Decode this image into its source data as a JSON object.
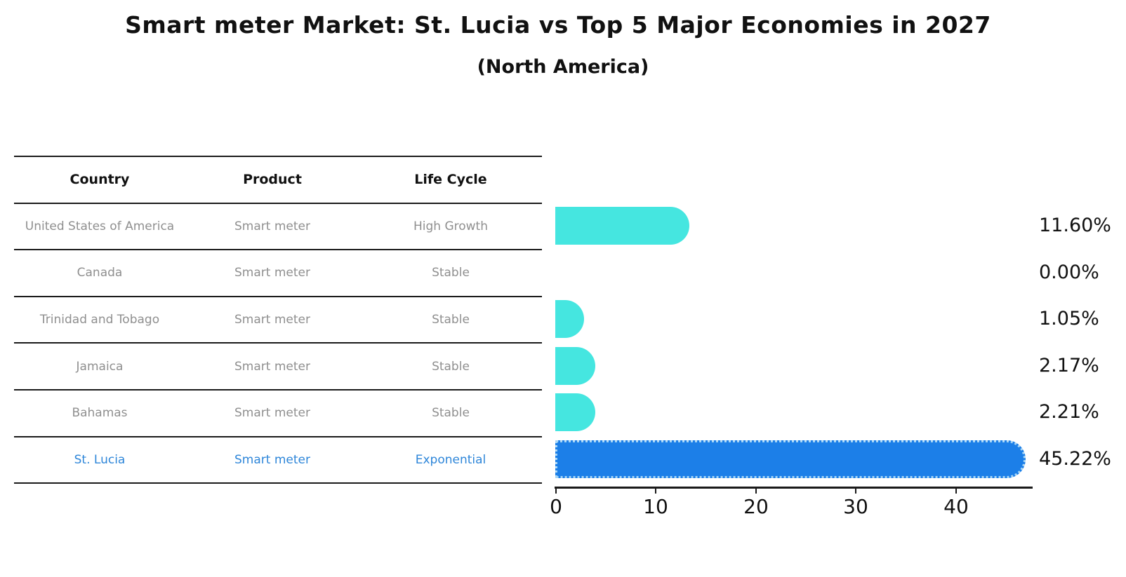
{
  "chart_data": {
    "type": "bar",
    "orientation": "horizontal",
    "title": "Smart meter Market: St. Lucia vs Top 5 Major Economies in 2027",
    "subtitle": "(North America)",
    "categories": [
      "United States of America",
      "Canada",
      "Trinidad and Tobago",
      "Jamaica",
      "Bahamas",
      "St. Lucia"
    ],
    "values": [
      11.6,
      0.0,
      1.05,
      2.17,
      2.21,
      45.22
    ],
    "value_labels": [
      "11.60%",
      "0.00%",
      "1.05%",
      "2.17%",
      "2.21%",
      "45.22%"
    ],
    "x_ticks": [
      0,
      10,
      20,
      30,
      40
    ],
    "xlim": [
      0,
      47.6
    ],
    "highlight_index": 5,
    "legend": "none",
    "grid": "off",
    "colors": {
      "bar_default": "#45E6E0",
      "bar_highlight": "#1C7FE8",
      "bar_highlight_border": "#A9D7F6",
      "table_text": "#8F8F8F",
      "table_text_highlight": "#2E86D9",
      "axis_text": "#111111"
    }
  },
  "table": {
    "headers": [
      "Country",
      "Product",
      "Life Cycle"
    ],
    "rows": [
      {
        "country": "United States of America",
        "product": "Smart meter",
        "life_cycle": "High Growth"
      },
      {
        "country": "Canada",
        "product": "Smart meter",
        "life_cycle": "Stable"
      },
      {
        "country": "Trinidad and Tobago",
        "product": "Smart meter",
        "life_cycle": "Stable"
      },
      {
        "country": "Jamaica",
        "product": "Smart meter",
        "life_cycle": "Stable"
      },
      {
        "country": "Bahamas",
        "product": "Smart meter",
        "life_cycle": "Stable"
      },
      {
        "country": "St. Lucia",
        "product": "Smart meter",
        "life_cycle": "Exponential"
      }
    ]
  }
}
